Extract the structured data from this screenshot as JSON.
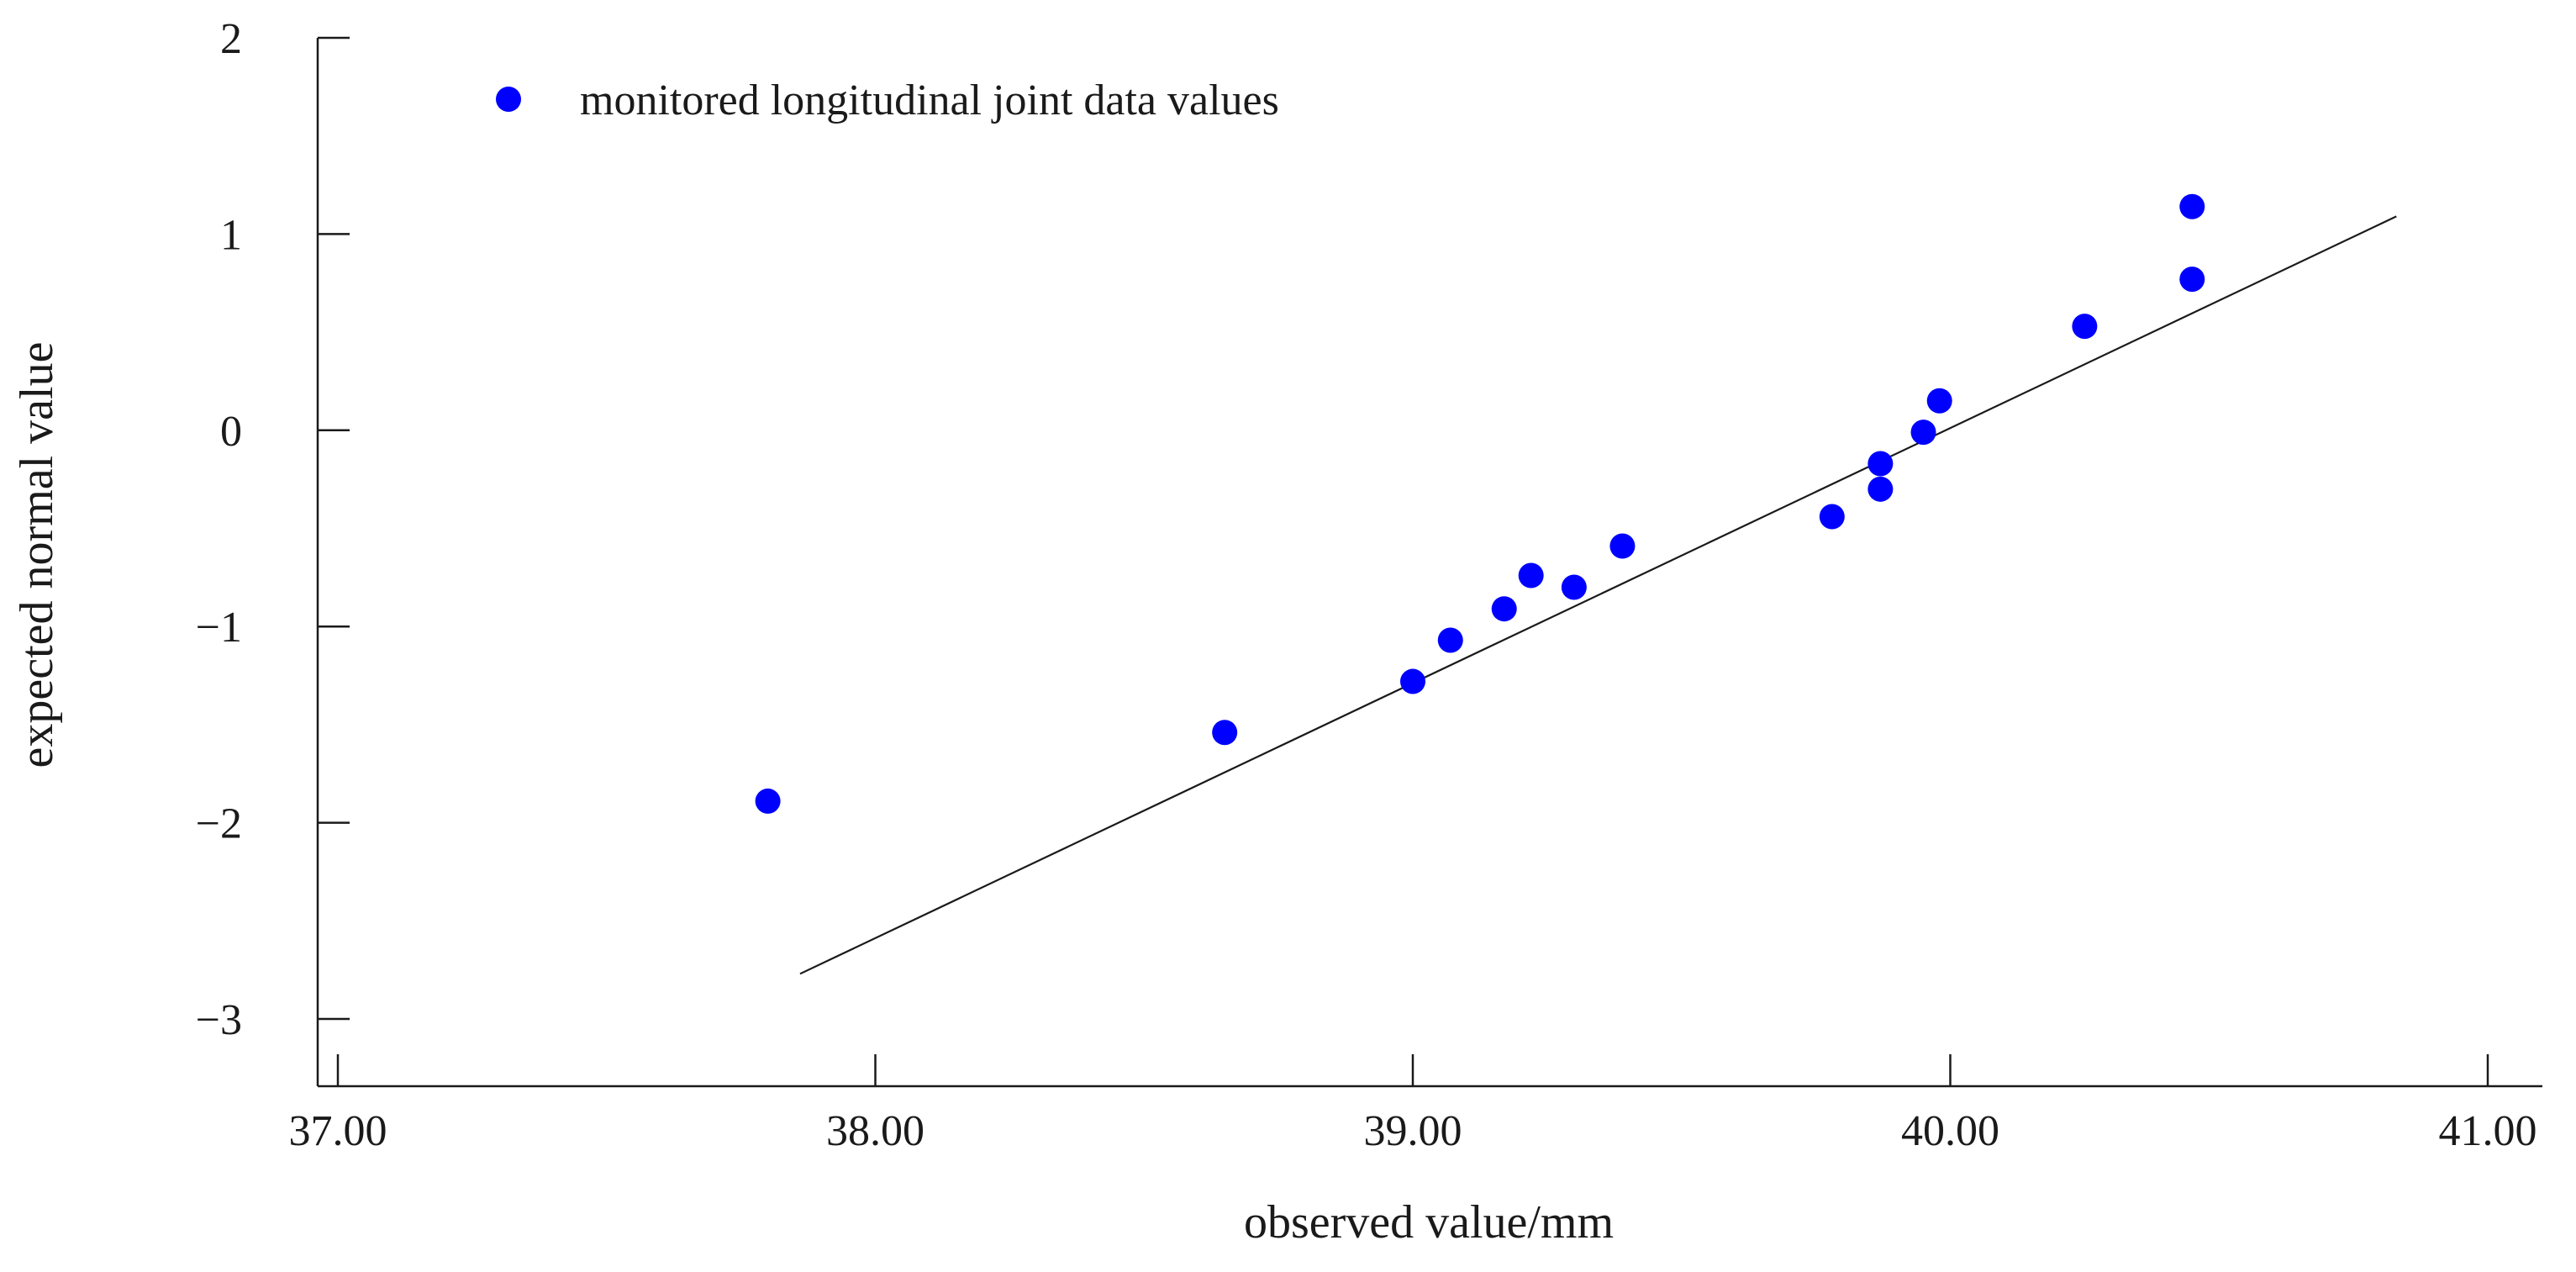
{
  "chart_data": {
    "type": "scatter",
    "xlabel": "observed value/mm",
    "ylabel": "expected normal value",
    "xlim": [
      37.0,
      41.0
    ],
    "ylim": [
      -3.35,
      2.0
    ],
    "x_ticks": [
      37.0,
      38.0,
      39.0,
      40.0,
      41.0
    ],
    "x_tick_labels": [
      "37.00",
      "38.00",
      "39.00",
      "40.00",
      "41.00"
    ],
    "y_ticks": [
      -3,
      -2,
      -1,
      0,
      1,
      2
    ],
    "y_tick_labels": [
      "−3",
      "−2",
      "−1",
      "0",
      "1",
      "2"
    ],
    "legend": {
      "position": "top-left",
      "label": "monitored longitudinal joint data values"
    },
    "series": [
      {
        "name": "monitored longitudinal joint data values",
        "color": "#0000ff",
        "x": [
          37.8,
          38.65,
          39.0,
          39.07,
          39.17,
          39.22,
          39.3,
          39.39,
          39.78,
          39.87,
          39.87,
          39.95,
          39.98,
          40.25,
          40.45,
          40.45
        ],
        "y": [
          -1.89,
          -1.54,
          -1.28,
          -1.07,
          -0.91,
          -0.74,
          -0.8,
          -0.59,
          -0.44,
          -0.3,
          -0.17,
          -0.01,
          0.15,
          0.53,
          0.77,
          1.14
        ]
      }
    ],
    "fit_line": {
      "color": "#1a1a1a",
      "x": [
        37.86,
        40.83
      ],
      "y": [
        -2.77,
        1.09
      ]
    }
  }
}
